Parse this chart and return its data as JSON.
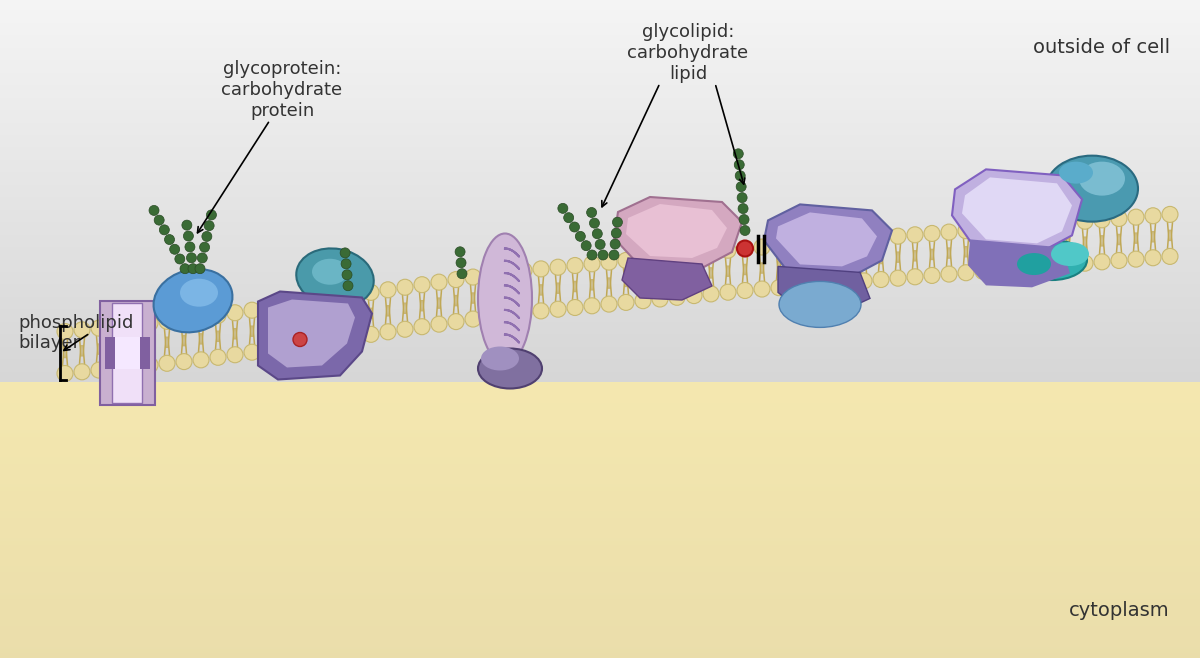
{
  "background_top": "#d8d8d8",
  "background_bottom": "#f5e8b0",
  "bilayer_head_color": "#e8d9a0",
  "bilayer_head_outline": "#c8b870",
  "bilayer_tail_color": "#c0a855",
  "title_outside": "outside of cell",
  "title_cytoplasm": "cytoplasm",
  "label_phospholipid": "phospholipid\nbilayer",
  "label_glycoprotein": "glycoprotein:\ncarbohydrate\nprotein",
  "label_glycolipid": "glycolipid:\ncarbohydrate\nlipid",
  "carb_color": "#3a6b35",
  "carb_ec": "#2a4b25",
  "protein_blue": "#5b9bd5",
  "protein_teal": "#4a9aaa",
  "protein_purple": "#7b68aa",
  "protein_lavender": "#c9b8d8",
  "protein_pink": "#e8c0d0",
  "protein_mauve": "#9b7b9b",
  "protein_cyan": "#30b0b0",
  "red_dot": "#cc3333"
}
